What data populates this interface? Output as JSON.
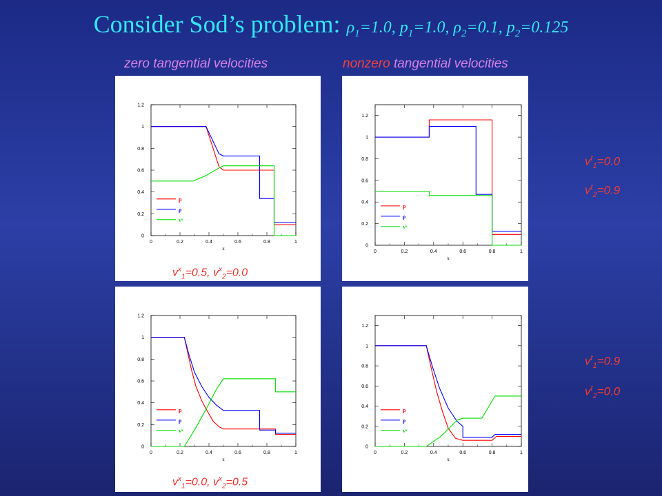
{
  "title": {
    "main": "Consider Sod’s problem: ",
    "params": [
      {
        "sym": "ρ",
        "sub": "1",
        "val": "=1.0, "
      },
      {
        "sym": "p",
        "sub": "1",
        "val": "=1.0, "
      },
      {
        "sym": "ρ",
        "sub": "2",
        "val": "=0.1, "
      },
      {
        "sym": "p",
        "sub": "2",
        "val": "=0.125"
      }
    ]
  },
  "columns": {
    "left": "zero tangential velocities",
    "right_prefix": "nonzero",
    "right_suffix": " tangential velocities"
  },
  "captions": {
    "top": {
      "a_sup": "x",
      "a_sub": "1",
      "a_val": "=0.5, ",
      "b_sup": "x",
      "b_sub": "2",
      "b_val": "=0.0"
    },
    "bottom": {
      "a_sup": "x",
      "a_sub": "1",
      "a_val": "=0.0, ",
      "b_sup": "x",
      "b_sub": "2",
      "b_val": "=0.5"
    }
  },
  "side_labels": {
    "top": [
      {
        "sup": "t",
        "sub": "1",
        "val": "=0.0"
      },
      {
        "sup": "t",
        "sub": "2",
        "val": "=0.9"
      }
    ],
    "bottom": [
      {
        "sup": "t",
        "sub": "1",
        "val": "=0.9"
      },
      {
        "sup": "t",
        "sub": "2",
        "val": "=0.0"
      }
    ]
  },
  "colors": {
    "p": "#ff0000",
    "rho": "#0000ff",
    "vx": "#00dd00",
    "accent": "#35e6f2"
  },
  "chart_data": [
    {
      "type": "line",
      "xlabel": "x",
      "xlim": [
        0,
        1
      ],
      "ylim": [
        0,
        1.2
      ],
      "xticks": [
        "0",
        "0.2",
        "0.4",
        "0.6",
        "0.8",
        "1"
      ],
      "yticks": [
        "0",
        "0.2",
        "0.4",
        "0.6",
        "0.8",
        "1",
        "1.2"
      ],
      "legend": [
        "p",
        "ρ",
        "vˣ"
      ],
      "series": [
        {
          "name": "p",
          "x": [
            0,
            0.38,
            0.47,
            0.5,
            0.75,
            0.85,
            0.85,
            1
          ],
          "y": [
            1,
            1,
            0.63,
            0.6,
            0.6,
            0.6,
            0.1,
            0.1
          ]
        },
        {
          "name": "ρ",
          "x": [
            0,
            0.38,
            0.47,
            0.5,
            0.75,
            0.75,
            0.85,
            0.85,
            1
          ],
          "y": [
            1,
            1,
            0.75,
            0.73,
            0.73,
            0.34,
            0.34,
            0.12,
            0.12
          ]
        },
        {
          "name": "vˣ",
          "x": [
            0,
            0.29,
            0.38,
            0.47,
            0.5,
            0.85,
            0.85,
            1
          ],
          "y": [
            0.5,
            0.5,
            0.55,
            0.62,
            0.64,
            0.64,
            0,
            0
          ]
        }
      ]
    },
    {
      "type": "line",
      "xlabel": "x",
      "xlim": [
        0,
        1
      ],
      "ylim": [
        0,
        1.3
      ],
      "xticks": [
        "0",
        "0.2",
        "0.4",
        "0.6",
        "0.8",
        "1"
      ],
      "yticks": [
        "0",
        "0.2",
        "0.4",
        "0.6",
        "0.8",
        "1",
        "1.2"
      ],
      "legend": [
        "p",
        "ρ",
        "vˣ"
      ],
      "series": [
        {
          "name": "p",
          "x": [
            0,
            0.37,
            0.37,
            0.8,
            0.8,
            0.8,
            1
          ],
          "y": [
            1,
            1,
            1.16,
            1.16,
            0.95,
            0.1,
            0.1
          ]
        },
        {
          "name": "ρ",
          "x": [
            0,
            0.37,
            0.37,
            0.69,
            0.69,
            0.8,
            0.8,
            1
          ],
          "y": [
            1,
            1,
            1.1,
            1.1,
            0.47,
            0.47,
            0.13,
            0.13
          ]
        },
        {
          "name": "vˣ",
          "x": [
            0,
            0.37,
            0.37,
            0.8,
            0.8,
            1
          ],
          "y": [
            0.5,
            0.5,
            0.46,
            0.46,
            0,
            0
          ]
        }
      ]
    },
    {
      "type": "line",
      "xlabel": "x",
      "xlim": [
        0,
        1
      ],
      "ylim": [
        0,
        1.2
      ],
      "xticks": [
        "0",
        "0.2",
        "0.4",
        "0.6",
        "0.8",
        "1"
      ],
      "yticks": [
        "0",
        "0.2",
        "0.4",
        "0.6",
        "0.8",
        "1",
        "1.2"
      ],
      "legend": [
        "p",
        "ρ",
        "vˣ"
      ],
      "series": [
        {
          "name": "p",
          "x": [
            0,
            0.23,
            0.25,
            0.28,
            0.31,
            0.35,
            0.39,
            0.43,
            0.47,
            0.5,
            0.75,
            0.86,
            0.86,
            1
          ],
          "y": [
            1,
            1,
            0.88,
            0.7,
            0.55,
            0.42,
            0.32,
            0.23,
            0.18,
            0.16,
            0.16,
            0.16,
            0.11,
            0.11
          ]
        },
        {
          "name": "ρ",
          "x": [
            0,
            0.23,
            0.26,
            0.3,
            0.35,
            0.4,
            0.45,
            0.5,
            0.75,
            0.75,
            0.86,
            0.86,
            1
          ],
          "y": [
            1,
            1,
            0.85,
            0.68,
            0.55,
            0.45,
            0.38,
            0.33,
            0.33,
            0.15,
            0.15,
            0.12,
            0.12
          ]
        },
        {
          "name": "vˣ",
          "x": [
            0,
            0.23,
            0.3,
            0.38,
            0.45,
            0.5,
            0.86,
            0.86,
            1
          ],
          "y": [
            0,
            0,
            0.15,
            0.34,
            0.52,
            0.62,
            0.62,
            0.5,
            0.5
          ]
        }
      ]
    },
    {
      "type": "line",
      "xlabel": "x",
      "xlim": [
        0,
        1
      ],
      "ylim": [
        0,
        1.3
      ],
      "xticks": [
        "0",
        "0.2",
        "0.4",
        "0.6",
        "0.8",
        "1"
      ],
      "yticks": [
        "0",
        "0.2",
        "0.4",
        "0.6",
        "0.8",
        "1",
        "1.2"
      ],
      "legend": [
        "p",
        "ρ",
        "vˣ"
      ],
      "series": [
        {
          "name": "p",
          "x": [
            0,
            0.35,
            0.38,
            0.42,
            0.46,
            0.5,
            0.55,
            0.6,
            0.8,
            0.83,
            1
          ],
          "y": [
            1,
            1,
            0.8,
            0.55,
            0.35,
            0.18,
            0.08,
            0.06,
            0.06,
            0.1,
            0.1
          ]
        },
        {
          "name": "ρ",
          "x": [
            0,
            0.35,
            0.39,
            0.44,
            0.5,
            0.56,
            0.6,
            0.6,
            0.8,
            0.82,
            1
          ],
          "y": [
            1,
            1,
            0.8,
            0.58,
            0.38,
            0.25,
            0.2,
            0.09,
            0.09,
            0.12,
            0.12
          ]
        },
        {
          "name": "vˣ",
          "x": [
            0,
            0.35,
            0.45,
            0.52,
            0.56,
            0.6,
            0.73,
            0.82,
            1
          ],
          "y": [
            0,
            0,
            0.1,
            0.2,
            0.26,
            0.28,
            0.28,
            0.5,
            0.5
          ]
        }
      ]
    }
  ]
}
